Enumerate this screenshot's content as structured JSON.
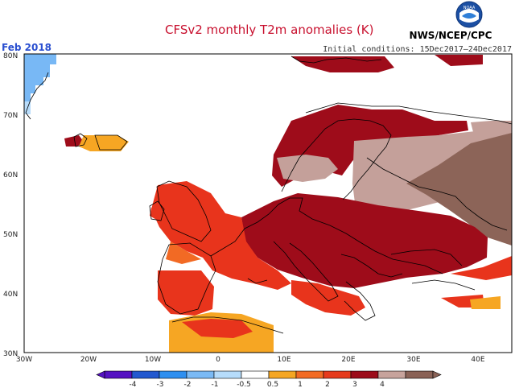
{
  "header": {
    "title": "CFSv2 monthly T2m anomalies (K)",
    "agency": "NWS/NCEP/CPC",
    "initial_conditions": "Initial conditions: 15Dec2017–24Dec2017",
    "month": "Feb 2018"
  },
  "logo": {
    "text": "NOAA"
  },
  "map": {
    "lon_labels": [
      "30W",
      "20W",
      "10W",
      "0",
      "10E",
      "20E",
      "30E",
      "40E"
    ],
    "lat_labels": [
      "80N",
      "70N",
      "60N",
      "50N",
      "40N",
      "30N"
    ],
    "palette": {
      "neg4": "#4a0fa0",
      "neg3": "#1a54c8",
      "neg2": "#2f8af0",
      "neg1": "#78b8f5",
      "neg05": "#b8dcfa",
      "pos05": "#f6a623",
      "pos1": "#f26a24",
      "pos2": "#e8341c",
      "pos3": "#9e0c1a",
      "pos4": "#c4a09a",
      "pos5": "#8c6458"
    }
  },
  "colorbar": {
    "labels": [
      "-4",
      "-3",
      "-2",
      "-1",
      "-0.5",
      "0.5",
      "1",
      "2",
      "3",
      "4"
    ],
    "colors": [
      "#5512c2",
      "#2258cf",
      "#2e8ff0",
      "#7bbaf5",
      "#b6dcfb",
      "#ffffff",
      "#f5a623",
      "#f26b24",
      "#e63a1c",
      "#9c0c1a",
      "#c7a39c",
      "#8a6256"
    ]
  }
}
